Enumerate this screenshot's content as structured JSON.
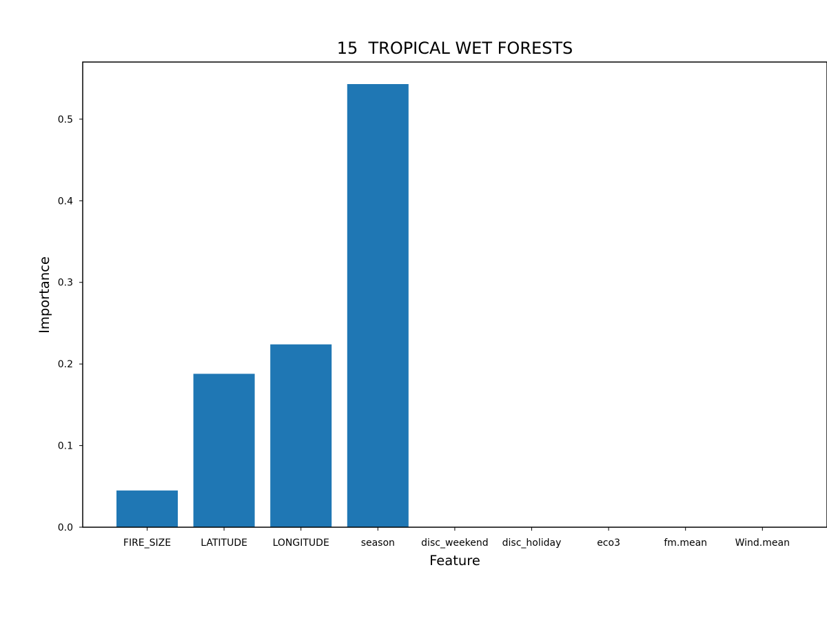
{
  "chart_data": {
    "type": "bar",
    "title": "15  TROPICAL WET FORESTS",
    "xlabel": "Feature",
    "ylabel": "Importance",
    "categories": [
      "FIRE_SIZE",
      "LATITUDE",
      "LONGITUDE",
      "season",
      "disc_weekend",
      "disc_holiday",
      "eco3",
      "fm.mean",
      "Wind.mean"
    ],
    "values": [
      0.045,
      0.188,
      0.224,
      0.543,
      0.0,
      0.0,
      0.0,
      0.0,
      0.0
    ],
    "ylim": [
      0,
      0.57
    ],
    "yticks": [
      0.0,
      0.1,
      0.2,
      0.3,
      0.4,
      0.5
    ],
    "ytick_labels": [
      "0.0",
      "0.1",
      "0.2",
      "0.3",
      "0.4",
      "0.5"
    ],
    "bar_color": "#1f77b4",
    "grid": false,
    "legend": "none"
  }
}
